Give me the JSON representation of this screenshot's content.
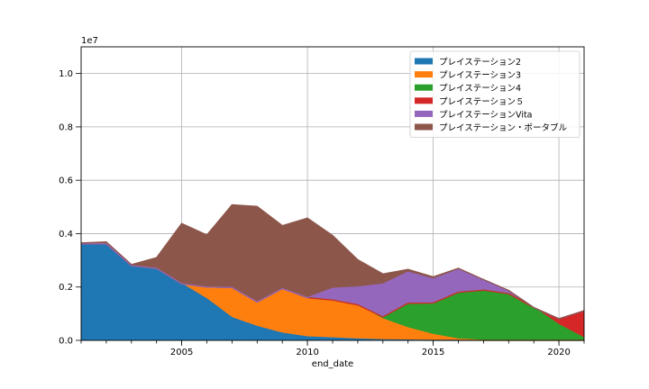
{
  "chart_data": {
    "type": "area",
    "stacked": true,
    "xlabel": "end_date",
    "ylabel": "",
    "offset_label": "1e7",
    "xlim": [
      2001,
      2021
    ],
    "ylim": [
      0,
      1.1
    ],
    "xticks": [
      2005,
      2010,
      2015,
      2020
    ],
    "yticks": [
      0.0,
      0.2,
      0.4,
      0.6,
      0.8,
      1.0
    ],
    "ytick_labels": [
      "0.0",
      "0.2",
      "0.4",
      "0.6",
      "0.8",
      "1.0"
    ],
    "grid": true,
    "legend_position": "top-right",
    "x": [
      2001,
      2002,
      2003,
      2004,
      2005,
      2006,
      2007,
      2008,
      2009,
      2010,
      2011,
      2012,
      2013,
      2014,
      2015,
      2016,
      2017,
      2018,
      2019,
      2020,
      2021
    ],
    "series": [
      {
        "name": "プレイステーション2",
        "color": "#1f77b4",
        "values": [
          0.362,
          0.362,
          0.28,
          0.27,
          0.212,
          0.155,
          0.085,
          0.052,
          0.027,
          0.013,
          0.009,
          0.005,
          0.002,
          0.001,
          0.0,
          0.0,
          0.0,
          0.0,
          0.0,
          0.0,
          0.0
        ]
      },
      {
        "name": "プレイステーション3",
        "color": "#ff7f0e",
        "values": [
          0.0,
          0.0,
          0.0,
          0.0,
          0.0,
          0.045,
          0.113,
          0.092,
          0.167,
          0.147,
          0.142,
          0.128,
          0.078,
          0.046,
          0.022,
          0.005,
          0.0,
          0.0,
          0.0,
          0.0,
          0.0
        ]
      },
      {
        "name": "プレイステーション4",
        "color": "#2ca02c",
        "values": [
          0.0,
          0.0,
          0.0,
          0.0,
          0.0,
          0.0,
          0.0,
          0.0,
          0.0,
          0.0,
          0.0,
          0.0,
          0.008,
          0.092,
          0.118,
          0.175,
          0.188,
          0.175,
          0.123,
          0.059,
          0.009
        ]
      },
      {
        "name": "プレイステーション５",
        "color": "#d62728",
        "values": [
          0.0,
          0.0,
          0.0,
          0.0,
          0.0,
          0.0,
          0.0,
          0.0,
          0.0,
          0.0,
          0.0,
          0.0,
          0.0,
          0.0,
          0.0,
          0.0,
          0.0,
          0.0,
          0.0,
          0.022,
          0.102
        ]
      },
      {
        "name": "プレイステーションVita",
        "color": "#9467bd",
        "values": [
          0.0,
          0.0,
          0.0,
          0.0,
          0.0,
          0.0,
          0.0,
          0.0,
          0.0,
          0.0,
          0.044,
          0.067,
          0.123,
          0.117,
          0.09,
          0.085,
          0.04,
          0.012,
          0.0,
          0.0,
          0.0
        ]
      },
      {
        "name": "プレイステーション・ポータブル",
        "color": "#8c564b",
        "values": [
          0.003,
          0.007,
          0.004,
          0.04,
          0.226,
          0.195,
          0.31,
          0.358,
          0.236,
          0.298,
          0.198,
          0.102,
          0.038,
          0.01,
          0.008,
          0.005,
          0.0,
          0.0,
          0.0,
          0.0,
          0.0
        ]
      }
    ]
  }
}
